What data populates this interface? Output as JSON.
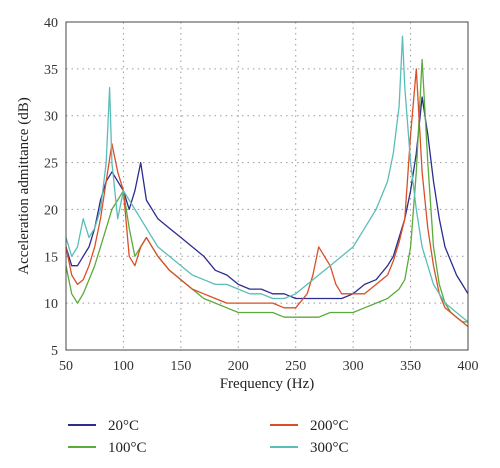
{
  "chart_data": {
    "type": "line",
    "title": "",
    "xlabel": "Frequency (Hz)",
    "ylabel": "Acceleration admittance (dB)",
    "xlim": [
      50,
      400
    ],
    "ylim": [
      5,
      40
    ],
    "xticks": [
      50,
      100,
      150,
      200,
      250,
      300,
      350,
      400
    ],
    "yticks": [
      5,
      10,
      15,
      20,
      25,
      30,
      35,
      40
    ],
    "grid": true,
    "grid_style": "dotted",
    "legend_position": "bottom",
    "series": [
      {
        "name": "20°C",
        "color": "#2b2d8f",
        "x": [
          50,
          55,
          60,
          65,
          70,
          75,
          80,
          85,
          90,
          95,
          100,
          105,
          110,
          115,
          120,
          125,
          130,
          140,
          150,
          160,
          170,
          180,
          190,
          200,
          210,
          220,
          230,
          240,
          250,
          260,
          270,
          280,
          290,
          300,
          310,
          320,
          330,
          335,
          340,
          345,
          350,
          355,
          360,
          365,
          370,
          375,
          380,
          385,
          390,
          395,
          400
        ],
        "y": [
          16,
          14,
          14,
          15,
          16,
          18,
          21,
          23,
          24,
          23,
          22,
          20,
          22,
          25,
          21,
          20,
          19,
          18,
          17,
          16,
          15,
          13.5,
          13,
          12,
          11.5,
          11.5,
          11,
          11,
          10.5,
          10.5,
          10.5,
          10.5,
          10.5,
          11,
          12,
          12.5,
          14,
          15,
          17,
          19,
          22,
          26,
          32,
          28,
          23,
          19,
          16,
          14.5,
          13,
          12,
          11
        ]
      },
      {
        "name": "100°C",
        "color": "#5aab3a",
        "x": [
          50,
          55,
          60,
          65,
          70,
          75,
          80,
          85,
          90,
          95,
          100,
          105,
          110,
          115,
          120,
          125,
          130,
          140,
          150,
          160,
          170,
          180,
          190,
          200,
          210,
          220,
          230,
          240,
          250,
          260,
          270,
          280,
          290,
          300,
          310,
          320,
          330,
          335,
          340,
          345,
          350,
          355,
          360,
          365,
          370,
          375,
          380,
          385,
          390,
          395,
          400
        ],
        "y": [
          14,
          11,
          10,
          11,
          12.5,
          14,
          16,
          18,
          20,
          21,
          22,
          18,
          15,
          16,
          17,
          16,
          15,
          13.5,
          12.5,
          11.5,
          10.5,
          10,
          9.5,
          9,
          9,
          9,
          9,
          8.5,
          8.5,
          8.5,
          8.5,
          9,
          9,
          9,
          9.5,
          10,
          10.5,
          11,
          11.5,
          12.5,
          16,
          24,
          36,
          25,
          16,
          12,
          10,
          9,
          8.5,
          8,
          8
        ]
      },
      {
        "name": "200°C",
        "color": "#d94f27",
        "x": [
          50,
          55,
          60,
          65,
          70,
          75,
          80,
          85,
          90,
          95,
          100,
          105,
          110,
          115,
          120,
          125,
          130,
          140,
          150,
          160,
          170,
          180,
          190,
          200,
          210,
          220,
          230,
          240,
          250,
          260,
          265,
          270,
          275,
          280,
          285,
          290,
          300,
          310,
          320,
          330,
          335,
          340,
          345,
          350,
          355,
          360,
          365,
          370,
          375,
          380,
          385,
          390,
          395,
          400
        ],
        "y": [
          16,
          13,
          12,
          12.5,
          14,
          16,
          19,
          23,
          27,
          24,
          22,
          15,
          14,
          16,
          17,
          16,
          15,
          13.5,
          12.5,
          11.5,
          11,
          10.5,
          10,
          10,
          10,
          10,
          10,
          9.5,
          9.5,
          11,
          13,
          16,
          15,
          14,
          12,
          11,
          11,
          11,
          12,
          13,
          14.5,
          16.5,
          19,
          28,
          35,
          24,
          18,
          14,
          11,
          9.5,
          9,
          8.5,
          8,
          7.5
        ]
      },
      {
        "name": "300°C",
        "color": "#5bbdb8",
        "x": [
          50,
          55,
          60,
          65,
          70,
          75,
          80,
          85,
          88,
          90,
          95,
          100,
          105,
          110,
          115,
          120,
          125,
          130,
          140,
          150,
          160,
          170,
          180,
          190,
          200,
          210,
          220,
          230,
          240,
          250,
          260,
          270,
          280,
          290,
          300,
          310,
          320,
          330,
          335,
          340,
          343,
          345,
          350,
          355,
          360,
          365,
          370,
          375,
          380,
          385,
          390,
          395,
          400
        ],
        "y": [
          17,
          15,
          16,
          19,
          17,
          18,
          20,
          25,
          33,
          25,
          19,
          22,
          21,
          20,
          19,
          18,
          17,
          16,
          15,
          14,
          13,
          12.5,
          12,
          12,
          11.5,
          11,
          11,
          10.5,
          10.5,
          11,
          12,
          13,
          14,
          15,
          16,
          18,
          20,
          23,
          26,
          31,
          38.5,
          33,
          25,
          20,
          16,
          14,
          12,
          11,
          10,
          9.5,
          9,
          8.5,
          8
        ]
      }
    ]
  }
}
